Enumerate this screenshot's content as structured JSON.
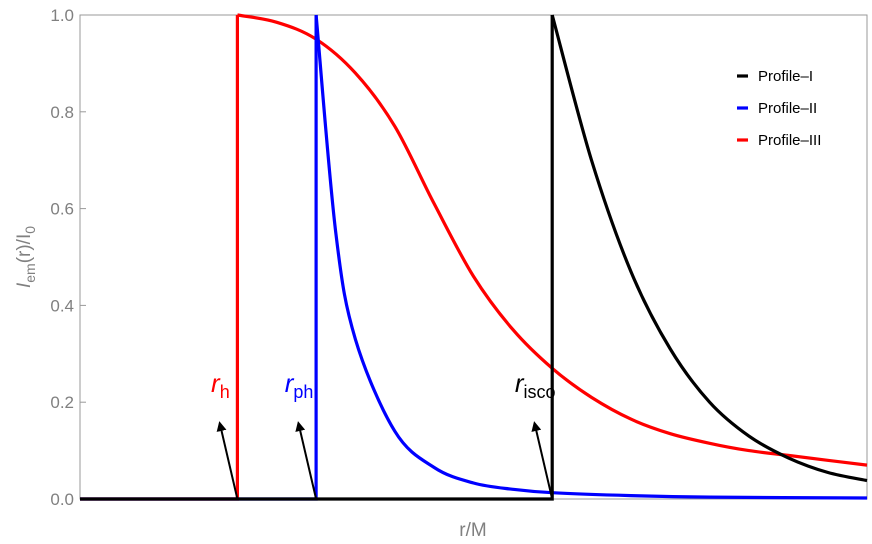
{
  "chart_data": {
    "type": "line",
    "xlabel": "r/M",
    "ylabel": {
      "main": "I",
      "sub": "em",
      "rest": "(r)/I",
      "sub2": "0"
    },
    "xlim": [
      0,
      10
    ],
    "ylim": [
      0,
      1.0
    ],
    "y_ticks": [
      "0.0",
      "0.2",
      "0.4",
      "0.6",
      "0.8",
      "1.0"
    ],
    "y_tick_values": [
      0,
      0.2,
      0.4,
      0.6,
      0.8,
      1.0
    ],
    "show_x_tick_labels": false,
    "grid": false,
    "legend_position": "top-right",
    "radii": {
      "r_h": 2.0,
      "r_ph": 3.0,
      "r_isco": 6.0
    },
    "series": [
      {
        "name": "Profile–I",
        "color": "#000000",
        "start": 6.0,
        "peak": 1.0,
        "x": [
          6.0,
          6.5,
          7.0,
          7.5,
          8.0,
          8.5,
          9.0,
          9.5,
          10.0
        ],
        "y": [
          1.0,
          0.7,
          0.47,
          0.31,
          0.2,
          0.13,
          0.085,
          0.055,
          0.038
        ]
      },
      {
        "name": "Profile–II",
        "color": "#0000ff",
        "start": 3.0,
        "peak": 1.0,
        "x": [
          3.0,
          3.25,
          3.5,
          4.0,
          4.5,
          5.0,
          5.5,
          6.0,
          7.0,
          8.0,
          10.0
        ],
        "y": [
          1.0,
          0.55,
          0.33,
          0.14,
          0.065,
          0.033,
          0.02,
          0.013,
          0.007,
          0.004,
          0.002
        ]
      },
      {
        "name": "Profile–III",
        "color": "#ff0000",
        "start": 2.0,
        "peak": 1.0,
        "x": [
          2.0,
          2.5,
          3.0,
          3.5,
          4.0,
          4.5,
          5.0,
          5.5,
          6.0,
          6.5,
          7.0,
          7.5,
          8.0,
          8.5,
          9.0,
          9.5,
          10.0
        ],
        "y": [
          1.0,
          0.985,
          0.95,
          0.88,
          0.77,
          0.61,
          0.46,
          0.35,
          0.27,
          0.21,
          0.165,
          0.135,
          0.115,
          0.1,
          0.09,
          0.08,
          0.07
        ]
      }
    ],
    "annotations": [
      {
        "main": "r",
        "sub": "h",
        "color": "#ff0000",
        "x": 2.0
      },
      {
        "main": "r",
        "sub": "ph",
        "color": "#0000ff",
        "x": 3.0
      },
      {
        "main": "r",
        "sub": "isco",
        "color": "#000000",
        "x": 6.0
      }
    ]
  }
}
